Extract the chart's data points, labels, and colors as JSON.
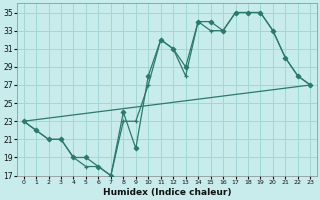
{
  "line1_x": [
    0,
    1,
    2,
    3,
    4,
    5,
    6,
    7,
    8,
    9,
    10,
    11,
    12,
    13,
    14,
    15,
    16,
    17,
    18,
    19,
    20,
    21,
    22,
    23
  ],
  "line1_y": [
    23,
    22,
    21,
    21,
    19,
    19,
    18,
    17,
    24,
    20,
    28,
    32,
    31,
    29,
    34,
    34,
    33,
    35,
    35,
    35,
    33,
    30,
    28,
    27
  ],
  "line2_x": [
    0,
    1,
    2,
    3,
    4,
    5,
    6,
    7,
    8,
    9,
    10,
    11,
    12,
    13,
    14,
    15,
    16,
    17,
    18,
    19,
    20,
    21,
    22,
    23
  ],
  "line2_y": [
    23,
    22,
    21,
    21,
    19,
    18,
    18,
    17,
    23,
    23,
    27,
    32,
    31,
    28,
    34,
    33,
    33,
    35,
    35,
    35,
    33,
    30,
    28,
    27
  ],
  "line3_x": [
    0,
    23
  ],
  "line3_y": [
    23,
    27
  ],
  "line_color": "#2a7a6a",
  "bg_color": "#c8ecec",
  "grid_color": "#9fd8d8",
  "xlabel": "Humidex (Indice chaleur)",
  "xlim": [
    -0.5,
    23.5
  ],
  "ylim": [
    17,
    36
  ],
  "yticks": [
    17,
    19,
    21,
    23,
    25,
    27,
    29,
    31,
    33,
    35
  ],
  "xticks": [
    0,
    1,
    2,
    3,
    4,
    5,
    6,
    7,
    8,
    9,
    10,
    11,
    12,
    13,
    14,
    15,
    16,
    17,
    18,
    19,
    20,
    21,
    22,
    23
  ]
}
